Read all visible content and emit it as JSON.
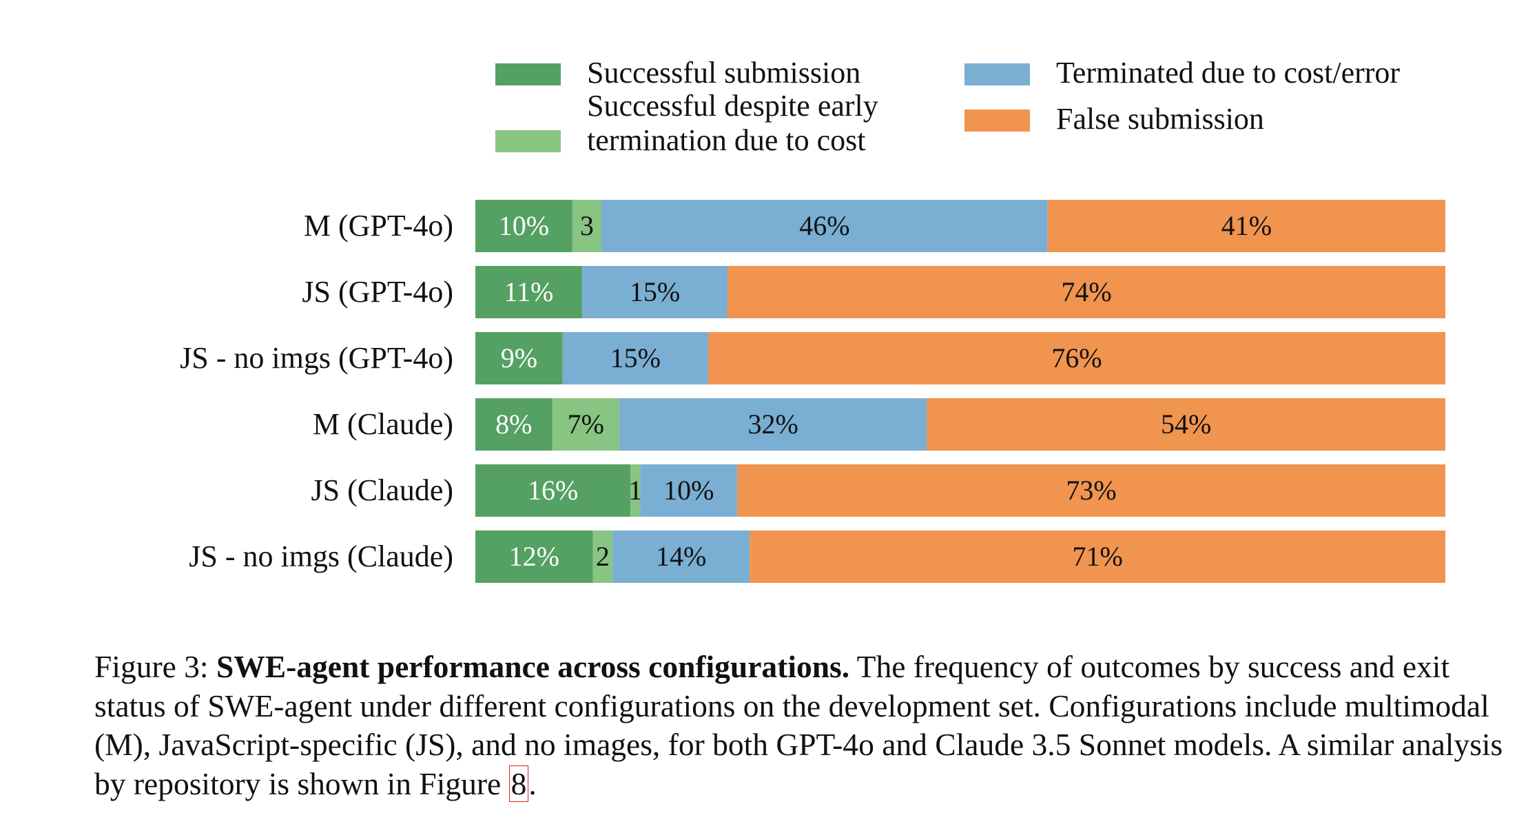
{
  "chart_data": {
    "type": "bar",
    "orientation": "horizontal",
    "stacked": true,
    "normalized_percent": true,
    "categories": [
      "M (GPT-4o)",
      "JS (GPT-4o)",
      "JS - no imgs (GPT-4o)",
      "M (Claude)",
      "JS (Claude)",
      "JS - no imgs (Claude)"
    ],
    "series": [
      {
        "name": "Successful submission",
        "color": "#55a063",
        "values": [
          10,
          11,
          9,
          8,
          16,
          12
        ],
        "labels": [
          "10%",
          "11%",
          "9%",
          "8%",
          "16%",
          "12%"
        ]
      },
      {
        "name": "Successful despite early termination due to cost",
        "color": "#88c482",
        "values": [
          3,
          0,
          0,
          7,
          1,
          2
        ],
        "labels": [
          "3",
          "",
          "",
          "7%",
          "1",
          "2"
        ]
      },
      {
        "name": "Terminated due to cost/error",
        "color": "#7aaed3",
        "values": [
          46,
          15,
          15,
          32,
          10,
          14
        ],
        "labels": [
          "46%",
          "15%",
          "15%",
          "32%",
          "10%",
          "14%"
        ]
      },
      {
        "name": "False submission",
        "color": "#f0944f",
        "values": [
          41,
          74,
          76,
          54,
          73,
          71
        ],
        "labels": [
          "41%",
          "74%",
          "76%",
          "54%",
          "73%",
          "71%"
        ]
      }
    ],
    "legend_position": "top",
    "grid": false
  },
  "legend": [
    {
      "lines": [
        "Successful submission"
      ]
    },
    {
      "lines": [
        "Successful despite early",
        "termination due to cost"
      ]
    },
    {
      "lines": [
        "Terminated due to cost/error"
      ]
    },
    {
      "lines": [
        "False submission"
      ]
    }
  ],
  "caption": {
    "prefix": "Figure 3: ",
    "bold": "SWE-agent performance across configurations.",
    "body": " The frequency of outcomes by success and exit status of SWE-agent under different configurations on the development set. Configurations include multimodal (M), JavaScript-specific (JS), and no images, for both GPT-4o and Claude 3.5 Sonnet models. A similar analysis by repository is shown in Figure ",
    "ref": "8",
    "suffix": "."
  }
}
